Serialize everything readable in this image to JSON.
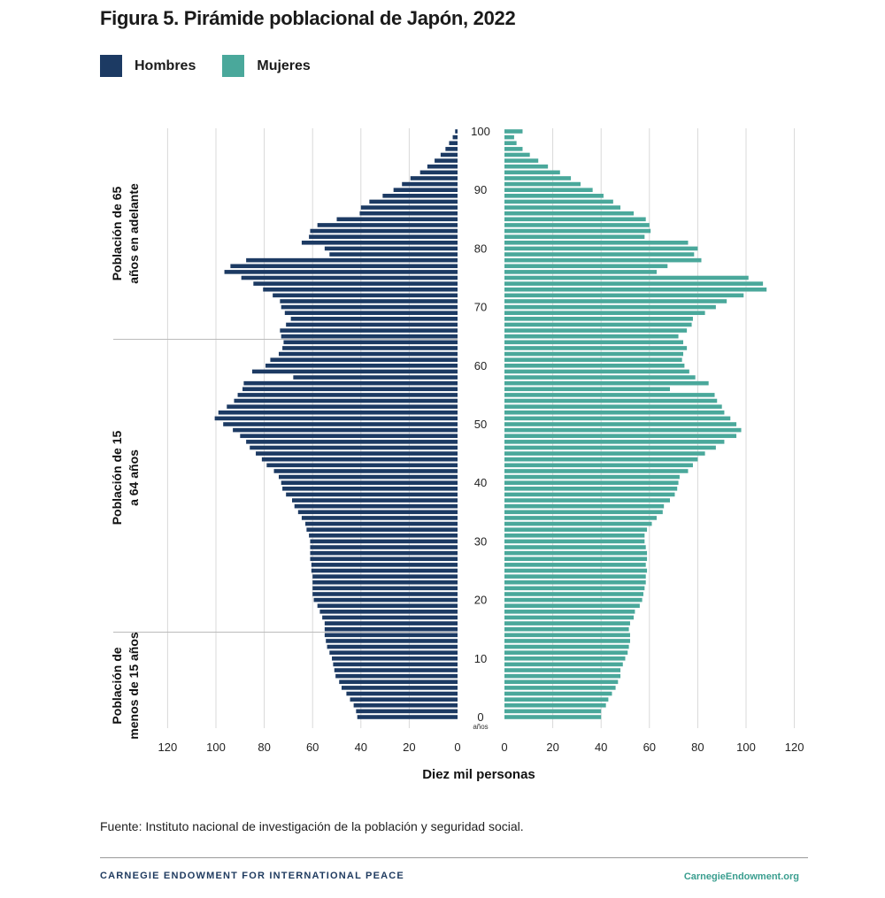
{
  "title": "Figura 5. Pirámide poblacional de Japón, 2022",
  "legend": {
    "men_label": "Hombres",
    "women_label": "Mujeres"
  },
  "colors": {
    "men": "#1c3a63",
    "women": "#4aa89b",
    "grid": "#d9d9d9"
  },
  "chart_data": {
    "type": "bar",
    "orientation": "horizontal-population-pyramid",
    "xlabel": "Diez mil personas",
    "age_unit_label": "años",
    "x_ticks": [
      0,
      20,
      40,
      60,
      80,
      100,
      120
    ],
    "xlim": [
      0,
      120
    ],
    "age_ticks": [
      0,
      10,
      20,
      30,
      40,
      50,
      60,
      70,
      80,
      90,
      100
    ],
    "group_labels": [
      {
        "line1": "Población de 65",
        "line2": "años en adelante"
      },
      {
        "line1": "Población de 15",
        "line2": "a 64 años"
      },
      {
        "line1": "Población de",
        "line2": "menos de 15 años"
      }
    ],
    "ages": [
      0,
      1,
      2,
      3,
      4,
      5,
      6,
      7,
      8,
      9,
      10,
      11,
      12,
      13,
      14,
      15,
      16,
      17,
      18,
      19,
      20,
      21,
      22,
      23,
      24,
      25,
      26,
      27,
      28,
      29,
      30,
      31,
      32,
      33,
      34,
      35,
      36,
      37,
      38,
      39,
      40,
      41,
      42,
      43,
      44,
      45,
      46,
      47,
      48,
      49,
      50,
      51,
      52,
      53,
      54,
      55,
      56,
      57,
      58,
      59,
      60,
      61,
      62,
      63,
      64,
      65,
      66,
      67,
      68,
      69,
      70,
      71,
      72,
      73,
      74,
      75,
      76,
      77,
      78,
      79,
      80,
      81,
      82,
      83,
      84,
      85,
      86,
      87,
      88,
      89,
      90,
      91,
      92,
      93,
      94,
      95,
      96,
      97,
      98,
      99,
      100
    ],
    "series": [
      {
        "name": "Hombres",
        "values": [
          41.5,
          42,
          43,
          44.5,
          46,
          48,
          49,
          50.5,
          51,
          51.5,
          52,
          53,
          54,
          54.5,
          55,
          55,
          55,
          56,
          57,
          58,
          59.5,
          60,
          60,
          60,
          60,
          60.5,
          60.5,
          61,
          61,
          61,
          61,
          61.5,
          62.5,
          63,
          64.5,
          66,
          67.5,
          68.5,
          71,
          72.5,
          73,
          74,
          76,
          79,
          81,
          83.5,
          86,
          87.5,
          90,
          93,
          97,
          100.5,
          99,
          95.5,
          92.5,
          91,
          89,
          88.5,
          68,
          85,
          79.5,
          77.5,
          74,
          72.5,
          72,
          73,
          73.5,
          71,
          69,
          71.5,
          73,
          73.5,
          76.5,
          80.5,
          84.5,
          89.5,
          96.5,
          94,
          87.5,
          53,
          55,
          64.5,
          61.5,
          61,
          58,
          50,
          40.5,
          40,
          36.5,
          31,
          26.5,
          23,
          19.5,
          15.5,
          12.5,
          9.5,
          7,
          5,
          3.5,
          2,
          1
        ]
      },
      {
        "name": "Mujeres",
        "values": [
          40,
          40,
          42,
          43,
          44.5,
          46,
          47,
          48,
          48,
          49,
          50,
          51,
          51.5,
          52,
          52,
          51.5,
          52,
          53.5,
          54,
          56,
          57,
          57.5,
          58,
          58.5,
          58.5,
          59,
          58.5,
          59,
          59,
          58.5,
          58,
          58,
          59,
          61,
          63,
          65.5,
          66,
          68.5,
          70.5,
          71.5,
          72,
          72.5,
          76,
          78,
          80,
          83,
          87.5,
          91,
          96,
          98,
          96,
          93.5,
          91,
          90,
          88,
          87,
          68.5,
          84.5,
          79,
          76.5,
          74.5,
          73.5,
          74,
          75.5,
          74,
          72,
          75.5,
          77.5,
          78,
          83,
          87.5,
          92,
          99,
          108.5,
          107,
          101,
          63,
          67.5,
          81.5,
          78.5,
          80,
          76,
          58,
          60.5,
          60,
          58.5,
          53.5,
          48,
          45,
          41,
          36.5,
          31.5,
          27.5,
          23,
          18,
          14,
          10.5,
          7.5,
          5,
          4,
          7.5
        ]
      }
    ]
  },
  "source": "Fuente: Instituto nacional de investigación de la población y seguridad social.",
  "footer": {
    "org": "CARNEGIE ENDOWMENT FOR INTERNATIONAL PEACE",
    "site": "CarnegieEndowment.org"
  }
}
